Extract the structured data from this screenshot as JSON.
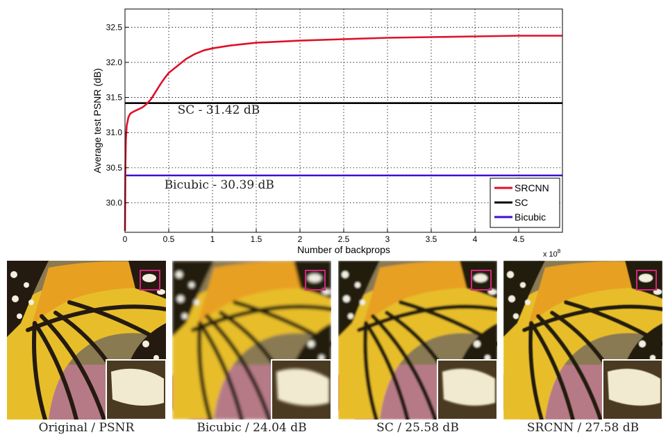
{
  "chart_data": {
    "type": "line",
    "xlabel": "Number of backprops",
    "ylabel": "Average test PSNR (dB)",
    "x_exponent": "x 10",
    "x_exponent_power": "8",
    "xlim": [
      0,
      5
    ],
    "ylim": [
      29.58,
      32.76
    ],
    "x_ticks": [
      0,
      0.5,
      1,
      1.5,
      2,
      2.5,
      3,
      3.5,
      4,
      4.5
    ],
    "x_tick_labels": [
      "0",
      "0.5",
      "1",
      "1.5",
      "2",
      "2.5",
      "3",
      "3.5",
      "4",
      "4.5"
    ],
    "y_ticks": [
      30.0,
      30.5,
      31.0,
      31.5,
      32.0,
      32.5
    ],
    "y_tick_labels": [
      "30.0",
      "30.5",
      "31.0",
      "31.5",
      "32.0",
      "32.5"
    ],
    "grid": true,
    "legend_position": "bottom-right",
    "series": [
      {
        "name": "SRCNN",
        "color": "#e0102a",
        "x": [
          0,
          0.005,
          0.01,
          0.02,
          0.04,
          0.06,
          0.1,
          0.15,
          0.2,
          0.25,
          0.3,
          0.35,
          0.4,
          0.45,
          0.5,
          0.6,
          0.7,
          0.8,
          0.9,
          1.0,
          1.2,
          1.5,
          2.0,
          2.5,
          3.0,
          3.5,
          4.0,
          4.5,
          5.0
        ],
        "y": [
          29.6,
          30.5,
          30.9,
          31.1,
          31.22,
          31.27,
          31.3,
          31.33,
          31.36,
          31.41,
          31.48,
          31.58,
          31.68,
          31.77,
          31.85,
          31.95,
          32.05,
          32.12,
          32.17,
          32.2,
          32.24,
          32.28,
          32.31,
          32.33,
          32.35,
          32.36,
          32.37,
          32.38,
          32.38
        ]
      },
      {
        "name": "SC",
        "color": "#000000",
        "x": [
          0,
          5
        ],
        "y": [
          31.42,
          31.42
        ]
      },
      {
        "name": "Bicubic",
        "color": "#3a10d0",
        "x": [
          0,
          5
        ],
        "y": [
          30.39,
          30.39
        ]
      }
    ],
    "annotations": [
      {
        "text": "SC - 31.42 dB",
        "x": 0.6,
        "y": 31.27
      },
      {
        "text": "Bicubic - 30.39 dB",
        "x": 0.45,
        "y": 30.2
      }
    ]
  },
  "panels": [
    {
      "caption": "Original / PSNR",
      "blur": 0
    },
    {
      "caption": "Bicubic / 24.04 dB",
      "blur": 2.2
    },
    {
      "caption": "SC / 25.58 dB",
      "blur": 1.2
    },
    {
      "caption": "SRCNN / 27.58 dB",
      "blur": 0.5
    }
  ],
  "colors": {
    "highlight_box": "#d6247a",
    "wing_yellow": "#e7be2a",
    "vein_black": "#241a10",
    "flower_pink": "#d64c86"
  }
}
